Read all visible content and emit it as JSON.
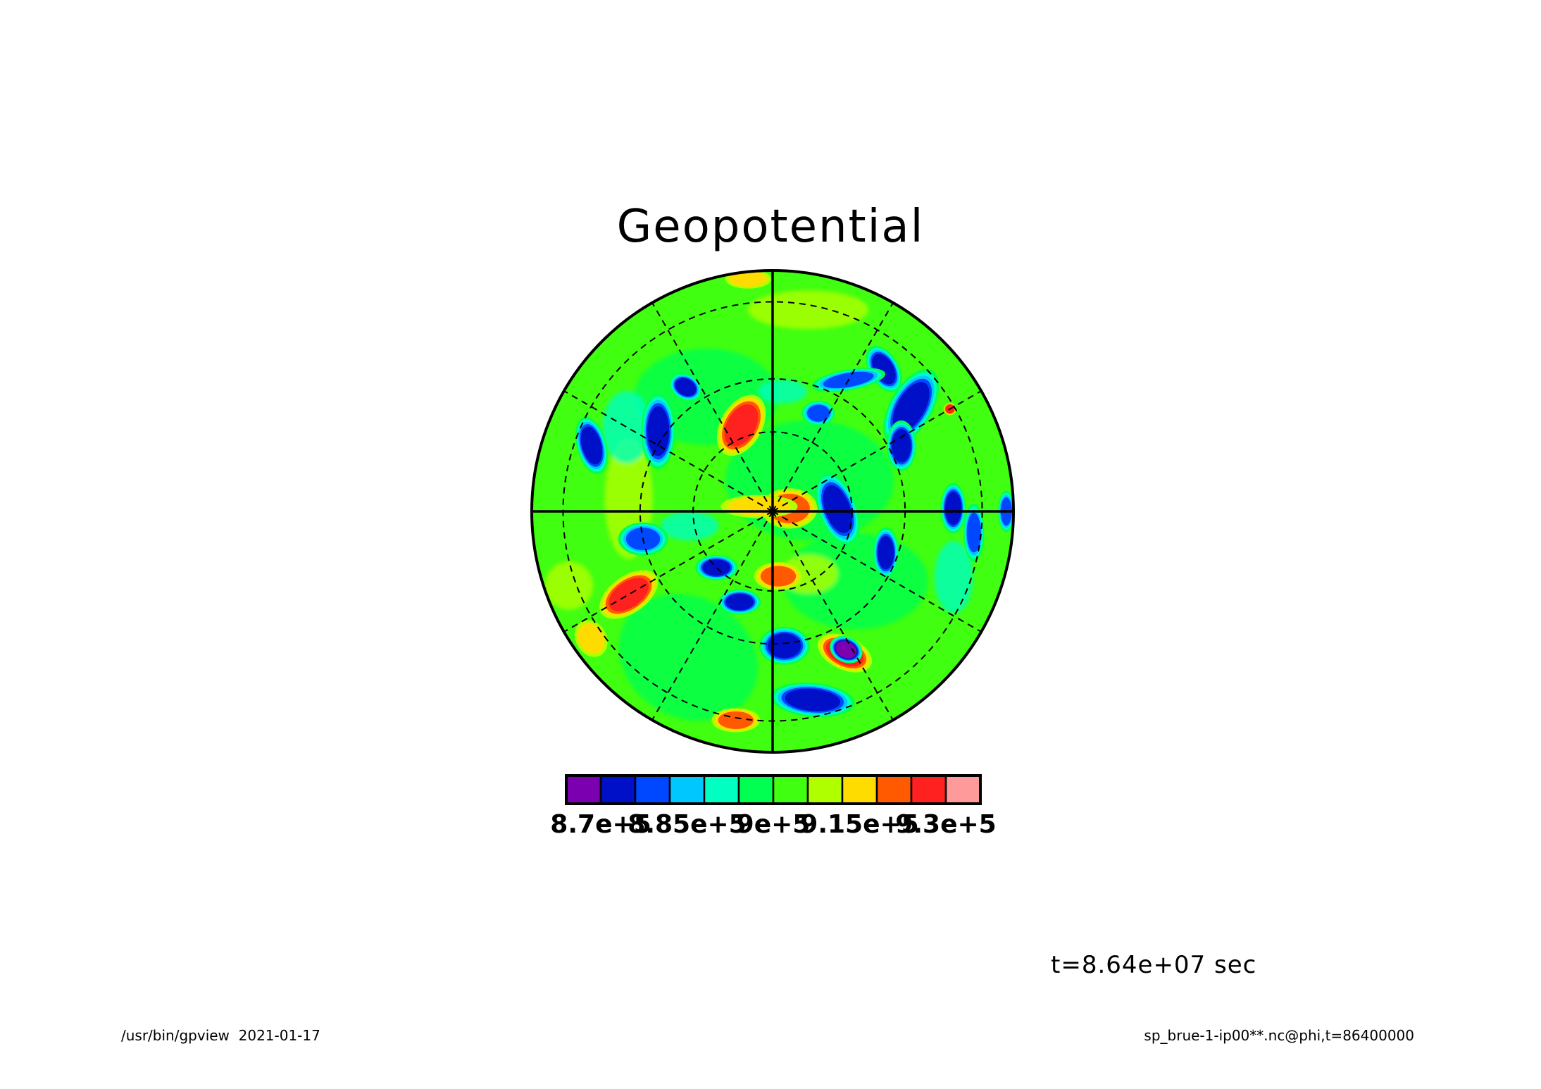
{
  "chart_data": {
    "type": "heatmap",
    "projection": "polar stereographic",
    "title": "Geopotential",
    "grid": true,
    "colorbar": {
      "orientation": "horizontal",
      "placement": "bottom",
      "levels": [
        870000,
        877500,
        885000,
        892500,
        900000,
        907500,
        915000,
        922500,
        930000
      ],
      "colors": [
        "#7a00b0",
        "#0010c8",
        "#0048ff",
        "#00c8ff",
        "#00ffc0",
        "#00ff50",
        "#40ff10",
        "#b0ff00",
        "#ffdc00",
        "#ff5a00",
        "#ff2020",
        "#ff9a9a"
      ],
      "tick_labels": [
        {
          "value": 870000,
          "label": "8.7e+5"
        },
        {
          "value": 885000,
          "label": "8.85e+5"
        },
        {
          "value": 900000,
          "label": "9e+5"
        },
        {
          "value": 915000,
          "label": "9.15e+5"
        },
        {
          "value": 930000,
          "label": "9.3e+5"
        }
      ]
    },
    "features": [
      {
        "r": 0.97,
        "theta": 96,
        "level": 8,
        "w": 0.06,
        "h": 0.025,
        "rot": 0
      },
      {
        "r": 0.38,
        "theta": 110,
        "level": 10,
        "w": 0.05,
        "h": 0.08,
        "rot": -30
      },
      {
        "r": 0.07,
        "theta": 10,
        "level": 9,
        "w": 0.07,
        "h": 0.05,
        "rot": 0
      },
      {
        "r": 0.06,
        "theta": 160,
        "level": 8,
        "w": 0.1,
        "h": 0.03,
        "rot": 0
      },
      {
        "r": 0.27,
        "theta": 2,
        "level": 1,
        "w": 0.045,
        "h": 0.09,
        "rot": 20
      },
      {
        "r": 0.75,
        "theta": 52,
        "level": 1,
        "w": 0.035,
        "h": 0.06,
        "rot": 30
      },
      {
        "r": 0.63,
        "theta": 60,
        "level": 2,
        "w": 0.09,
        "h": 0.025,
        "rot": 10
      },
      {
        "r": 0.72,
        "theta": 37,
        "level": 1,
        "w": 0.05,
        "h": 0.1,
        "rot": -30
      },
      {
        "r": 0.6,
        "theta": 27,
        "level": 1,
        "w": 0.035,
        "h": 0.06,
        "rot": 0
      },
      {
        "r": 0.75,
        "theta": 1,
        "level": 1,
        "w": 0.03,
        "h": 0.06,
        "rot": 0
      },
      {
        "r": 0.84,
        "theta": -6,
        "level": 2,
        "w": 0.025,
        "h": 0.07,
        "rot": 0
      },
      {
        "r": 0.8,
        "theta": 160,
        "level": 1,
        "w": 0.035,
        "h": 0.07,
        "rot": 15
      },
      {
        "r": 0.58,
        "theta": 145,
        "level": 1,
        "w": 0.04,
        "h": 0.09,
        "rot": 0
      },
      {
        "r": 0.63,
        "theta": 125,
        "level": 1,
        "w": 0.04,
        "h": 0.03,
        "rot": -30
      },
      {
        "r": 0.69,
        "theta": -150,
        "level": 10,
        "w": 0.08,
        "h": 0.045,
        "rot": 35
      },
      {
        "r": 0.66,
        "theta": -63,
        "level": 10,
        "w": 0.07,
        "h": 0.04,
        "rot": -25
      },
      {
        "r": 0.56,
        "theta": -85,
        "level": 1,
        "w": 0.06,
        "h": 0.045,
        "rot": 0
      },
      {
        "r": 0.8,
        "theta": -78,
        "level": 1,
        "w": 0.1,
        "h": 0.04,
        "rot": -5
      },
      {
        "r": 0.4,
        "theta": -110,
        "level": 1,
        "w": 0.05,
        "h": 0.03,
        "rot": 0
      },
      {
        "r": 0.33,
        "theta": -135,
        "level": 1,
        "w": 0.05,
        "h": 0.03,
        "rot": 0
      },
      {
        "r": 0.65,
        "theta": -62,
        "level": 0,
        "w": 0.04,
        "h": 0.03,
        "rot": -25
      },
      {
        "r": 0.88,
        "theta": -100,
        "level": 9,
        "w": 0.06,
        "h": 0.03,
        "rot": 0
      },
      {
        "r": 0.92,
        "theta": -145,
        "level": 8,
        "w": 0.04,
        "h": 0.05,
        "rot": 30
      },
      {
        "r": 0.55,
        "theta": -168,
        "level": 2,
        "w": 0.06,
        "h": 0.04,
        "rot": 0
      },
      {
        "r": 0.5,
        "theta": -20,
        "level": 1,
        "w": 0.03,
        "h": 0.06,
        "rot": 0
      },
      {
        "r": 0.27,
        "theta": -85,
        "level": 9,
        "w": 0.06,
        "h": 0.035,
        "rot": 0
      },
      {
        "r": 0.85,
        "theta": 30,
        "level": 10,
        "w": 0.015,
        "h": 0.015,
        "rot": 0
      },
      {
        "r": 0.45,
        "theta": 65,
        "level": 2,
        "w": 0.04,
        "h": 0.03,
        "rot": 0
      },
      {
        "r": 0.97,
        "theta": 0,
        "level": 2,
        "w": 0.02,
        "h": 0.05,
        "rot": 0
      }
    ]
  },
  "time_label": "t=8.64e+07 sec",
  "footer": {
    "left": "/usr/bin/gpview  2021-01-17",
    "right": "sp_brue-1-ip00**.nc@phi,t=86400000"
  }
}
